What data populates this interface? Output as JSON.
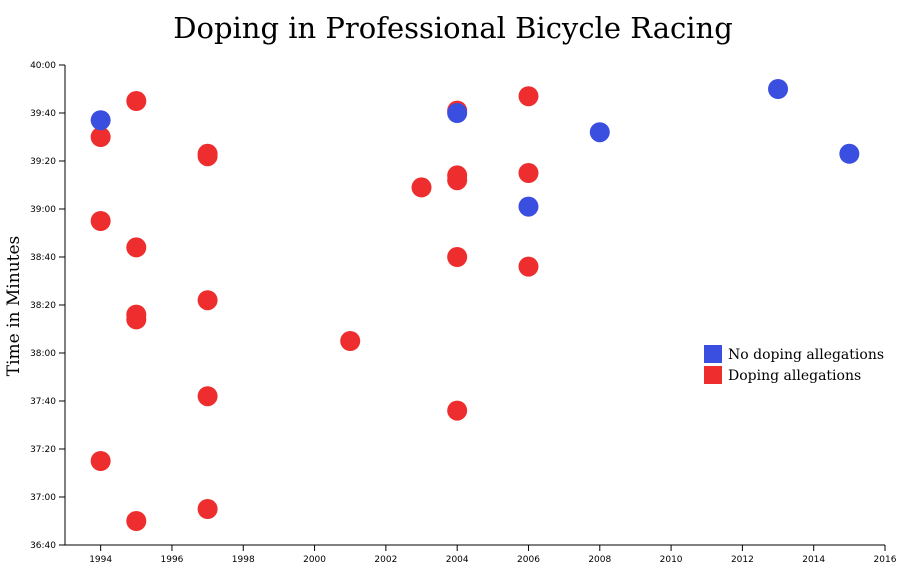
{
  "chart_data": {
    "type": "scatter",
    "title": "Doping in Professional Bicycle Racing",
    "xlabel": "",
    "ylabel": "Time in Minutes",
    "xlim": [
      1993,
      2016
    ],
    "ylim": [
      "36:40",
      "40:00"
    ],
    "x_ticks": [
      "1994",
      "1996",
      "1998",
      "2000",
      "2002",
      "2004",
      "2006",
      "2008",
      "2010",
      "2012",
      "2014",
      "2016"
    ],
    "y_ticks": [
      "40:00",
      "39:40",
      "39:20",
      "39:00",
      "38:40",
      "38:20",
      "38:00",
      "37:40",
      "37:20",
      "37:00",
      "36:40"
    ],
    "grid": false,
    "legend_position": "right",
    "series": [
      {
        "name": "No doping allegations",
        "color": "#3a4ee0",
        "points": [
          {
            "x": 1994,
            "y": "39:37"
          },
          {
            "x": 2004,
            "y": "39:40"
          },
          {
            "x": 2006,
            "y": "39:01"
          },
          {
            "x": 2008,
            "y": "39:32"
          },
          {
            "x": 2013,
            "y": "39:50"
          },
          {
            "x": 2015,
            "y": "39:23"
          }
        ]
      },
      {
        "name": "Doping allegations",
        "color": "#ee2e2e",
        "points": [
          {
            "x": 1994,
            "y": "39:30"
          },
          {
            "x": 1994,
            "y": "38:55"
          },
          {
            "x": 1994,
            "y": "37:15"
          },
          {
            "x": 1995,
            "y": "39:45"
          },
          {
            "x": 1995,
            "y": "38:44"
          },
          {
            "x": 1995,
            "y": "38:16"
          },
          {
            "x": 1995,
            "y": "38:14"
          },
          {
            "x": 1995,
            "y": "36:50"
          },
          {
            "x": 1997,
            "y": "39:23"
          },
          {
            "x": 1997,
            "y": "39:22"
          },
          {
            "x": 1997,
            "y": "38:22"
          },
          {
            "x": 1997,
            "y": "37:42"
          },
          {
            "x": 1997,
            "y": "36:55"
          },
          {
            "x": 2001,
            "y": "38:05"
          },
          {
            "x": 2003,
            "y": "39:09"
          },
          {
            "x": 2004,
            "y": "39:41"
          },
          {
            "x": 2004,
            "y": "39:14"
          },
          {
            "x": 2004,
            "y": "39:12"
          },
          {
            "x": 2004,
            "y": "38:40"
          },
          {
            "x": 2004,
            "y": "37:36"
          },
          {
            "x": 2006,
            "y": "39:47"
          },
          {
            "x": 2006,
            "y": "39:15"
          },
          {
            "x": 2006,
            "y": "38:36"
          }
        ]
      }
    ]
  }
}
